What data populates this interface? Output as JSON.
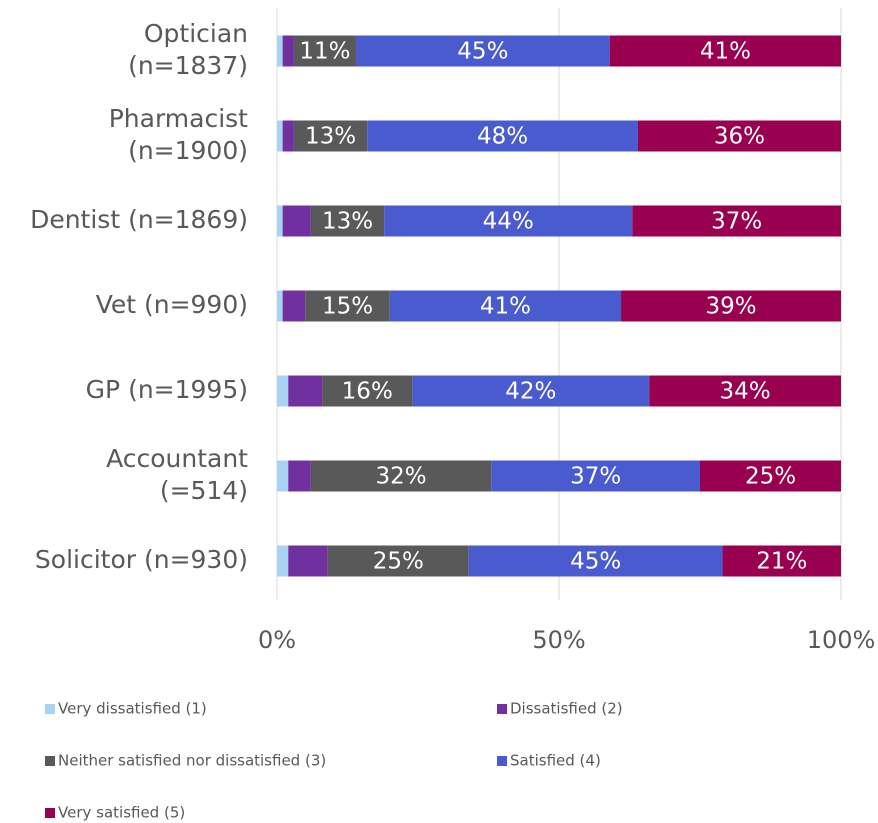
{
  "chart_data": {
    "type": "stacked_bar_horizontal",
    "categories": [
      [
        "Optician",
        "(n=1837)"
      ],
      [
        "Pharmacist",
        "(n=1900)"
      ],
      [
        "Dentist (n=1869)"
      ],
      [
        "Vet (n=990)"
      ],
      [
        "GP (n=1995)"
      ],
      [
        "Accountant",
        "(=514)"
      ],
      [
        "Solicitor (n=930)"
      ]
    ],
    "series": [
      {
        "name": "Very dissatisfied (1)",
        "color": "#a9d3f5",
        "values": [
          1,
          1,
          1,
          1,
          2,
          2,
          2
        ]
      },
      {
        "name": "Dissatisfied (2)",
        "color": "#7030a0",
        "values": [
          2,
          2,
          5,
          4,
          6,
          4,
          7
        ]
      },
      {
        "name": "Neither satisfied nor dissatisfied (3)",
        "color": "#595959",
        "values": [
          11,
          13,
          13,
          15,
          16,
          32,
          25
        ],
        "value_labels": [
          "11%",
          "13%",
          "13%",
          "15%",
          "16%",
          "32%",
          "25%"
        ]
      },
      {
        "name": "Satisfied (4)",
        "color": "#4a5bcf",
        "values": [
          45,
          48,
          44,
          41,
          42,
          37,
          45
        ],
        "value_labels": [
          "45%",
          "48%",
          "44%",
          "41%",
          "42%",
          "37%",
          "45%"
        ]
      },
      {
        "name": "Very satisfied (5)",
        "color": "#990050",
        "values": [
          41,
          36,
          37,
          39,
          34,
          25,
          21
        ],
        "value_labels": [
          "41%",
          "36%",
          "37%",
          "39%",
          "34%",
          "25%",
          "21%"
        ]
      }
    ],
    "xlim": [
      0,
      100
    ],
    "xticks": [
      {
        "value": 0,
        "label": "0%"
      },
      {
        "value": 50,
        "label": "50%"
      },
      {
        "value": 100,
        "label": "100%"
      }
    ],
    "grid": true,
    "legend": "bottom"
  }
}
